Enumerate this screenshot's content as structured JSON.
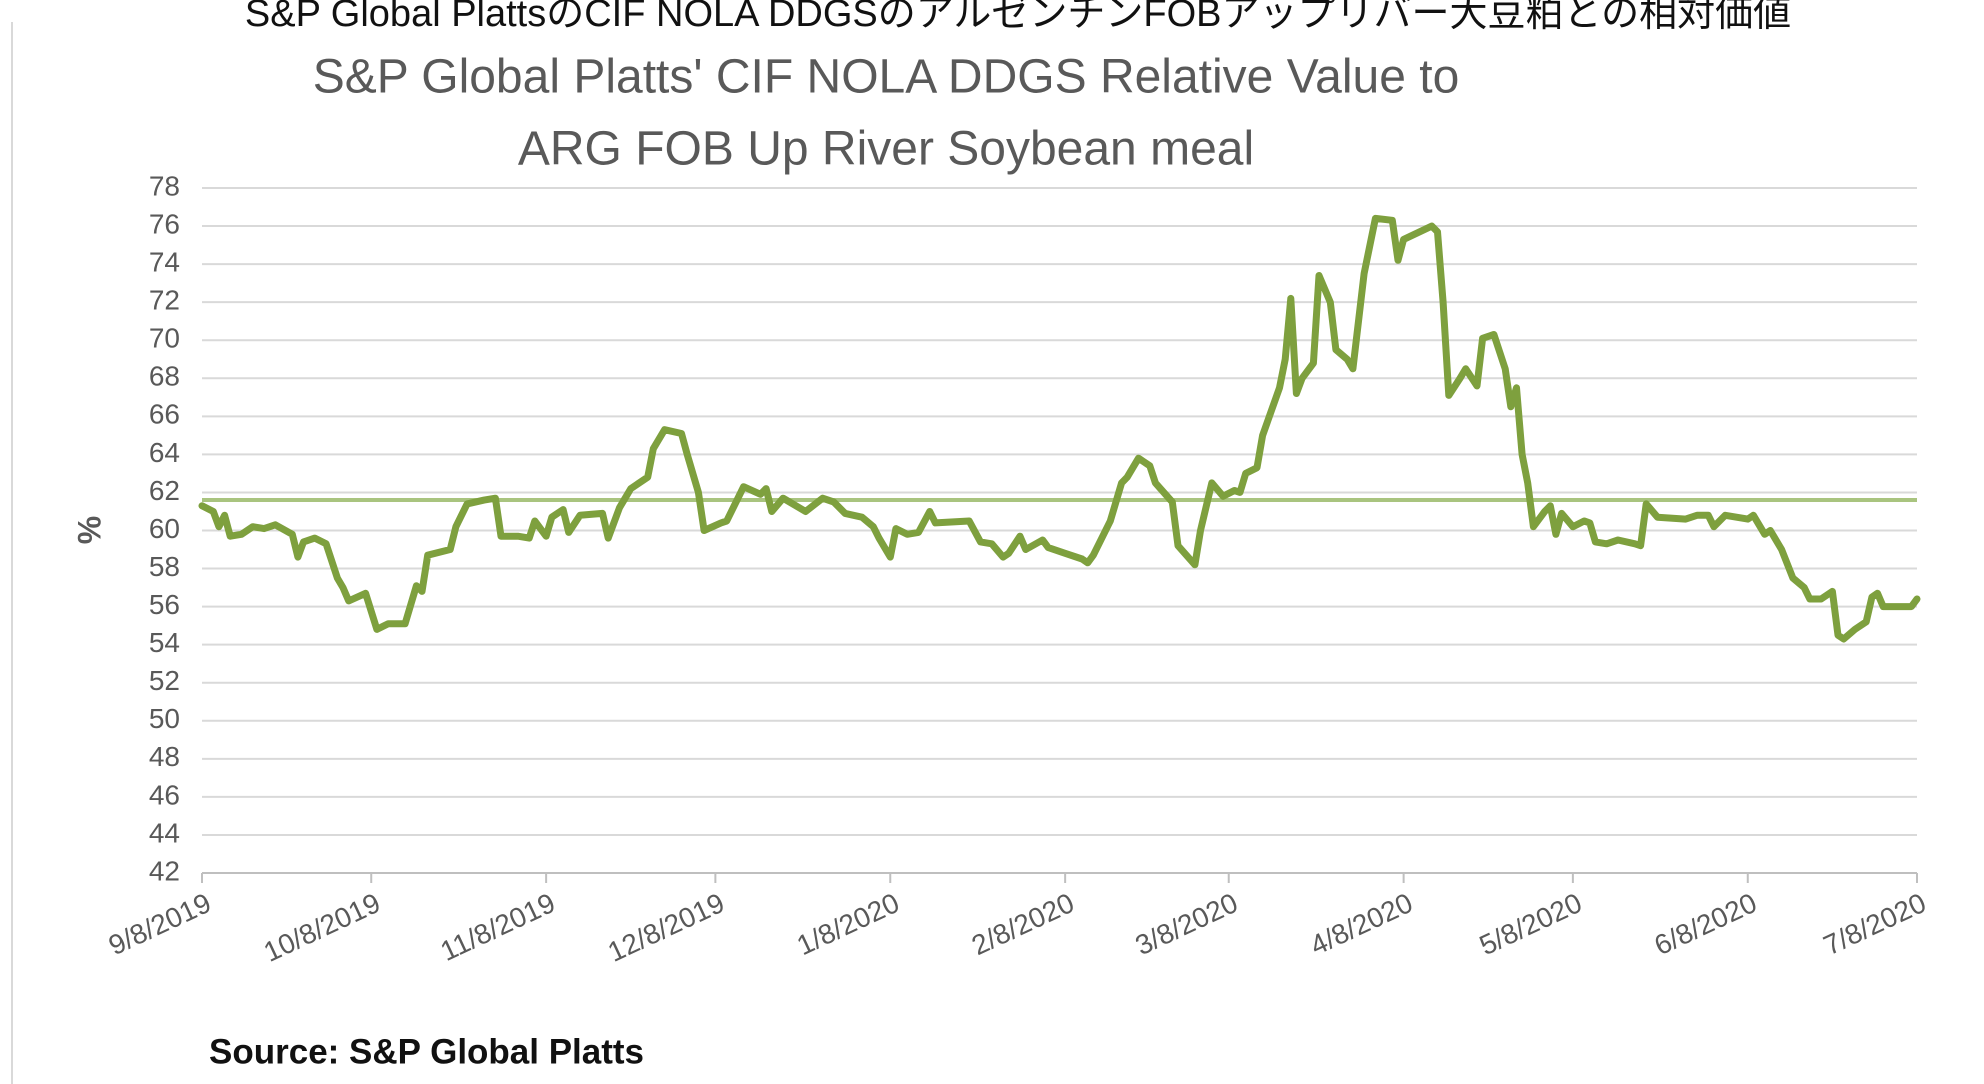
{
  "header": {
    "title": "S&P Global PlattsのCIF NOLA DDGSのアルゼンチンFOBアップリバー大豆粕との相対価値"
  },
  "chart_data": {
    "type": "line",
    "title": [
      "S&P Global Platts' CIF NOLA DDGS Relative Value to",
      "ARG FOB Up River Soybean meal"
    ],
    "ylabel": "%",
    "source": "Source: S&P Global Platts",
    "ylim": [
      42,
      78
    ],
    "yticks": [
      42,
      44,
      46,
      48,
      50,
      52,
      54,
      56,
      58,
      60,
      62,
      64,
      66,
      68,
      70,
      72,
      74,
      76,
      78
    ],
    "xlim": [
      "2019-09-08",
      "2020-07-08"
    ],
    "xticks": [
      {
        "value": "2019-09-08",
        "label": "9/8/2019"
      },
      {
        "value": "2019-10-08",
        "label": "10/8/2019"
      },
      {
        "value": "2019-11-08",
        "label": "11/8/2019"
      },
      {
        "value": "2019-12-08",
        "label": "12/8/2019"
      },
      {
        "value": "2020-01-08",
        "label": "1/8/2020"
      },
      {
        "value": "2020-02-08",
        "label": "2/8/2020"
      },
      {
        "value": "2020-03-08",
        "label": "3/8/2020"
      },
      {
        "value": "2020-04-08",
        "label": "4/8/2020"
      },
      {
        "value": "2020-05-08",
        "label": "5/8/2020"
      },
      {
        "value": "2020-06-08",
        "label": "6/8/2020"
      },
      {
        "value": "2020-07-08",
        "label": "7/8/2020"
      }
    ],
    "grid": true,
    "hline": {
      "value": 61.6,
      "color": "#a9c47f"
    },
    "x": [
      "2019-09-08",
      "2019-09-10",
      "2019-09-11",
      "2019-09-12",
      "2019-09-13",
      "2019-09-15",
      "2019-09-17",
      "2019-09-19",
      "2019-09-21",
      "2019-09-24",
      "2019-09-25",
      "2019-09-26",
      "2019-09-28",
      "2019-09-30",
      "2019-10-02",
      "2019-10-03",
      "2019-10-04",
      "2019-10-07",
      "2019-10-09",
      "2019-10-11",
      "2019-10-14",
      "2019-10-16",
      "2019-10-17",
      "2019-10-18",
      "2019-10-22",
      "2019-10-23",
      "2019-10-25",
      "2019-10-28",
      "2019-10-30",
      "2019-10-31",
      "2019-11-03",
      "2019-11-05",
      "2019-11-06",
      "2019-11-08",
      "2019-11-09",
      "2019-11-11",
      "2019-11-12",
      "2019-11-14",
      "2019-11-18",
      "2019-11-19",
      "2019-11-21",
      "2019-11-23",
      "2019-11-26",
      "2019-11-27",
      "2019-11-29",
      "2019-12-02",
      "2019-12-03",
      "2019-12-05",
      "2019-12-06",
      "2019-12-09",
      "2019-12-10",
      "2019-12-13",
      "2019-12-16",
      "2019-12-17",
      "2019-12-18",
      "2019-12-20",
      "2019-12-24",
      "2019-12-27",
      "2019-12-29",
      "2019-12-31",
      "2020-01-03",
      "2020-01-05",
      "2020-01-06",
      "2020-01-08",
      "2020-01-09",
      "2020-01-11",
      "2020-01-13",
      "2020-01-15",
      "2020-01-16",
      "2020-01-22",
      "2020-01-24",
      "2020-01-26",
      "2020-01-28",
      "2020-01-29",
      "2020-01-31",
      "2020-02-01",
      "2020-02-04",
      "2020-02-05",
      "2020-02-08",
      "2020-02-11",
      "2020-02-12",
      "2020-02-13",
      "2020-02-16",
      "2020-02-18",
      "2020-02-19",
      "2020-02-21",
      "2020-02-23",
      "2020-02-24",
      "2020-02-27",
      "2020-02-28",
      "2020-03-02",
      "2020-03-03",
      "2020-03-05",
      "2020-03-07",
      "2020-03-09",
      "2020-03-10",
      "2020-03-11",
      "2020-03-13",
      "2020-03-14",
      "2020-03-17",
      "2020-03-18",
      "2020-03-19",
      "2020-03-20",
      "2020-03-21",
      "2020-03-23",
      "2020-03-24",
      "2020-03-26",
      "2020-03-27",
      "2020-03-29",
      "2020-03-30",
      "2020-04-01",
      "2020-04-03",
      "2020-04-06",
      "2020-04-07",
      "2020-04-08",
      "2020-04-13",
      "2020-04-14",
      "2020-04-15",
      "2020-04-16",
      "2020-04-18",
      "2020-04-19",
      "2020-04-21",
      "2020-04-22",
      "2020-04-24",
      "2020-04-26",
      "2020-04-27",
      "2020-04-28",
      "2020-04-29",
      "2020-04-30",
      "2020-05-01",
      "2020-05-03",
      "2020-05-04",
      "2020-05-05",
      "2020-05-06",
      "2020-05-08",
      "2020-05-10",
      "2020-05-11",
      "2020-05-12",
      "2020-05-14",
      "2020-05-16",
      "2020-05-19",
      "2020-05-20",
      "2020-05-21",
      "2020-05-23",
      "2020-05-28",
      "2020-05-30",
      "2020-06-01",
      "2020-06-02",
      "2020-06-04",
      "2020-06-08",
      "2020-06-09",
      "2020-06-11",
      "2020-06-12",
      "2020-06-14",
      "2020-06-16",
      "2020-06-18",
      "2020-06-19",
      "2020-06-21",
      "2020-06-23",
      "2020-06-24",
      "2020-06-25",
      "2020-06-27",
      "2020-06-29",
      "2020-06-30",
      "2020-07-01",
      "2020-07-02",
      "2020-07-06",
      "2020-07-07",
      "2020-07-08"
    ],
    "series": [
      {
        "color": "#7ea03e",
        "values": [
          61.3,
          61.0,
          60.2,
          60.8,
          59.7,
          59.8,
          60.2,
          60.1,
          60.3,
          59.8,
          58.6,
          59.4,
          59.6,
          59.3,
          57.5,
          57.0,
          56.3,
          56.7,
          54.8,
          55.1,
          55.1,
          57.1,
          56.8,
          58.7,
          59.0,
          60.2,
          61.4,
          61.6,
          61.7,
          59.7,
          59.7,
          59.6,
          60.5,
          59.7,
          60.7,
          61.1,
          59.9,
          60.8,
          60.9,
          59.6,
          61.2,
          62.2,
          62.8,
          64.3,
          65.3,
          65.1,
          64.0,
          62.0,
          60.0,
          60.4,
          60.5,
          62.3,
          61.9,
          62.2,
          61.0,
          61.7,
          61.0,
          61.7,
          61.5,
          60.9,
          60.7,
          60.2,
          59.6,
          58.6,
          60.1,
          59.8,
          59.9,
          61.0,
          60.4,
          60.5,
          59.4,
          59.3,
          58.6,
          58.8,
          59.7,
          59.0,
          59.5,
          59.1,
          58.8,
          58.5,
          58.3,
          58.7,
          60.5,
          62.5,
          62.8,
          63.8,
          63.4,
          62.5,
          61.5,
          59.2,
          58.2,
          60.0,
          62.5,
          61.8,
          62.1,
          62.0,
          63.0,
          63.3,
          65.0,
          67.5,
          69.0,
          72.2,
          67.2,
          68.0,
          68.8,
          73.4,
          72.0,
          69.5,
          69.0,
          68.5,
          73.5,
          76.4,
          76.3,
          74.2,
          75.3,
          76.0,
          75.7,
          72.0,
          67.1,
          68.0,
          68.5,
          67.6,
          70.1,
          70.3,
          68.5,
          66.5,
          67.5,
          64.0,
          62.5,
          60.2,
          61.0,
          61.3,
          59.8,
          60.9,
          60.2,
          60.5,
          60.4,
          59.4,
          59.3,
          59.5,
          59.3,
          59.2,
          61.4,
          60.7,
          60.6,
          60.8,
          60.8,
          60.2,
          60.8,
          60.6,
          60.8,
          59.8,
          60.0,
          59.0,
          57.5,
          57.0,
          56.4,
          56.4,
          56.8,
          54.5,
          54.3,
          54.8,
          55.2,
          56.5,
          56.7,
          56.0,
          56.0,
          56.0,
          56.4
        ]
      }
    ]
  }
}
